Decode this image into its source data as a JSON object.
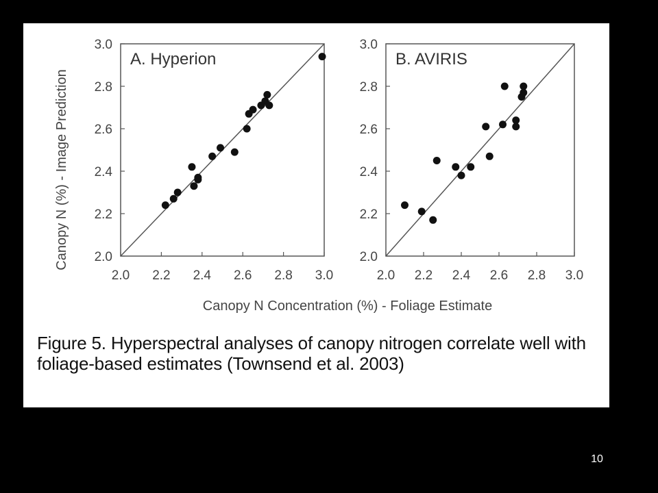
{
  "slide": {
    "number": "10"
  },
  "caption": "Figure 5. Hyperspectral analyses of canopy nitrogen correlate well with foliage-based estimates (Townsend et al. 2003)",
  "chart_data": {
    "type": "scatter",
    "ylabel": "Canopy N (%) - Image Prediction",
    "xlabel": "Canopy N Concentration (%) - Foliage Estimate",
    "xlim": [
      2.0,
      3.0
    ],
    "ylim": [
      2.0,
      3.0
    ],
    "ticks": [
      "2.0",
      "2.2",
      "2.4",
      "2.6",
      "2.8",
      "3.0"
    ],
    "reference_line": "1:1",
    "grid": false,
    "panels": [
      {
        "title": "A. Hyperion",
        "points": [
          {
            "x": 2.22,
            "y": 2.24
          },
          {
            "x": 2.26,
            "y": 2.27
          },
          {
            "x": 2.28,
            "y": 2.3
          },
          {
            "x": 2.35,
            "y": 2.42
          },
          {
            "x": 2.36,
            "y": 2.33
          },
          {
            "x": 2.38,
            "y": 2.36
          },
          {
            "x": 2.38,
            "y": 2.37
          },
          {
            "x": 2.45,
            "y": 2.47
          },
          {
            "x": 2.49,
            "y": 2.51
          },
          {
            "x": 2.56,
            "y": 2.49
          },
          {
            "x": 2.62,
            "y": 2.6
          },
          {
            "x": 2.63,
            "y": 2.67
          },
          {
            "x": 2.65,
            "y": 2.69
          },
          {
            "x": 2.69,
            "y": 2.71
          },
          {
            "x": 2.71,
            "y": 2.73
          },
          {
            "x": 2.72,
            "y": 2.76
          },
          {
            "x": 2.73,
            "y": 2.71
          },
          {
            "x": 2.99,
            "y": 2.94
          }
        ]
      },
      {
        "title": "B. AVIRIS",
        "points": [
          {
            "x": 2.1,
            "y": 2.24
          },
          {
            "x": 2.19,
            "y": 2.21
          },
          {
            "x": 2.25,
            "y": 2.17
          },
          {
            "x": 2.27,
            "y": 2.45
          },
          {
            "x": 2.37,
            "y": 2.42
          },
          {
            "x": 2.4,
            "y": 2.38
          },
          {
            "x": 2.45,
            "y": 2.42
          },
          {
            "x": 2.53,
            "y": 2.61
          },
          {
            "x": 2.55,
            "y": 2.47
          },
          {
            "x": 2.62,
            "y": 2.62
          },
          {
            "x": 2.63,
            "y": 2.8
          },
          {
            "x": 2.69,
            "y": 2.61
          },
          {
            "x": 2.69,
            "y": 2.64
          },
          {
            "x": 2.72,
            "y": 2.75
          },
          {
            "x": 2.73,
            "y": 2.8
          },
          {
            "x": 2.73,
            "y": 2.77
          }
        ]
      }
    ]
  }
}
